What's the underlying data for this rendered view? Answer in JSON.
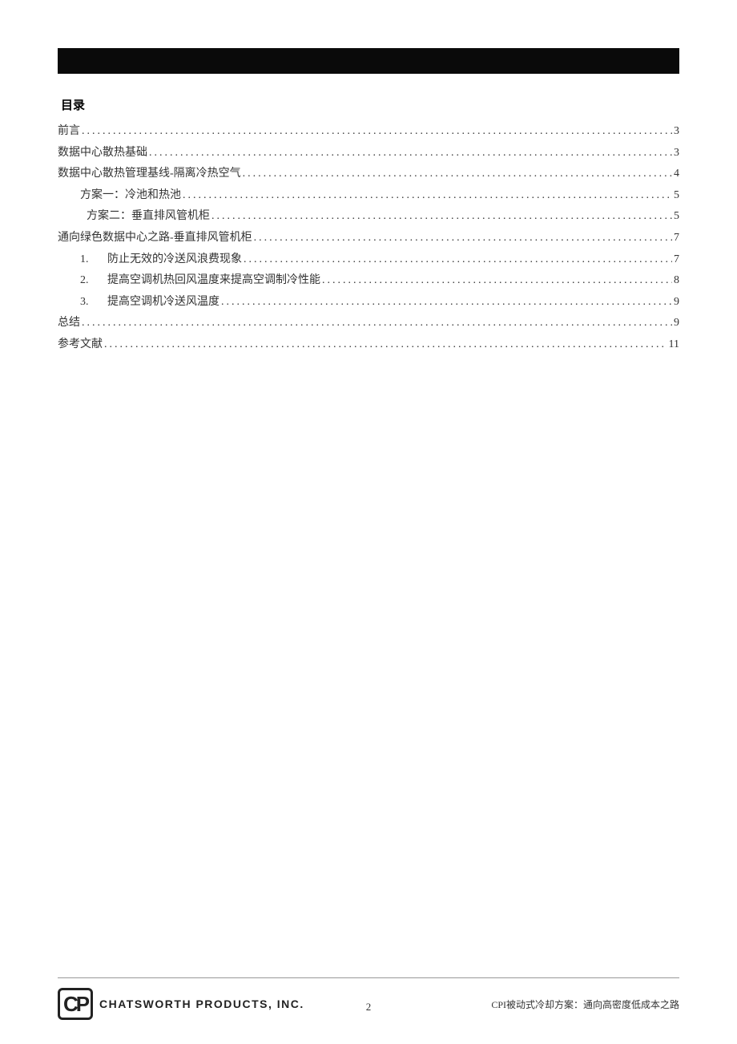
{
  "header": {
    "bar_color": "#0a0a0a"
  },
  "toc": {
    "title": "目录",
    "entries": [
      {
        "label": "前言",
        "page": "3",
        "indent": 0,
        "number": ""
      },
      {
        "label": "数据中心散热基础",
        "page": "3",
        "indent": 0,
        "number": ""
      },
      {
        "label": "数据中心散热管理基线-隔离冷热空气",
        "page": "4",
        "indent": 0,
        "number": ""
      },
      {
        "label": "方案一：冷池和热池",
        "page": "5",
        "indent": 1,
        "number": ""
      },
      {
        "label": "方案二：垂直排风管机柜",
        "page": "5",
        "indent": 2,
        "number": ""
      },
      {
        "label": "通向绿色数据中心之路-垂直排风管机柜",
        "page": "7",
        "indent": 0,
        "number": ""
      },
      {
        "label": "防止无效的冷送风浪费现象",
        "page": "7",
        "indent": 1,
        "number": "1."
      },
      {
        "label": "提高空调机热回风温度来提高空调制冷性能",
        "page": "8",
        "indent": 1,
        "number": "2."
      },
      {
        "label": "提高空调机冷送风温度",
        "page": "9",
        "indent": 1,
        "number": "3."
      },
      {
        "label": "总结",
        "page": "9",
        "indent": 0,
        "number": ""
      },
      {
        "label": "参考文献",
        "page": "11",
        "indent": 0,
        "number": ""
      }
    ]
  },
  "footer": {
    "logo_text": "CP",
    "company_name": "CHATSWORTH  PRODUCTS, INC.",
    "doc_title": "CPI被动式冷却方案：通向高密度低成本之路",
    "page_number": "2"
  },
  "colors": {
    "text": "#333333",
    "title": "#000000",
    "divider": "#999999",
    "background": "#ffffff"
  }
}
